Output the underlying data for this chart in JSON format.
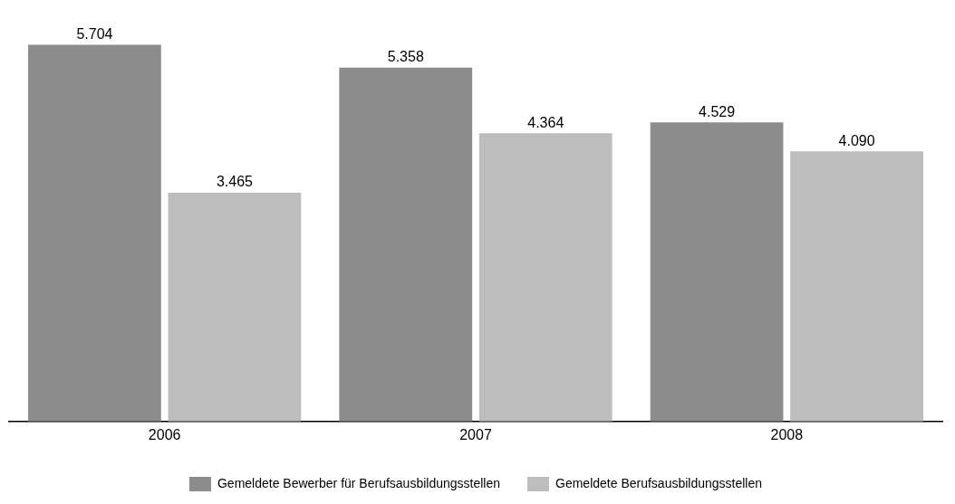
{
  "chart_data": {
    "type": "bar",
    "categories": [
      "2006",
      "2007",
      "2008"
    ],
    "series": [
      {
        "name": "Gemeldete Bewerber für Berufsausbildungsstellen",
        "color": "#8c8c8c",
        "values": [
          5704,
          5358,
          4529
        ],
        "value_labels": [
          "5.704",
          "5.358",
          "4.529"
        ]
      },
      {
        "name": "Gemeldete Berufsausbildungsstellen",
        "color": "#bdbdbd",
        "values": [
          3465,
          4364,
          4090
        ],
        "value_labels": [
          "3.465",
          "4.364",
          "4.090"
        ]
      }
    ],
    "grid": false,
    "legend": "bottom",
    "tick_labels": "x"
  }
}
